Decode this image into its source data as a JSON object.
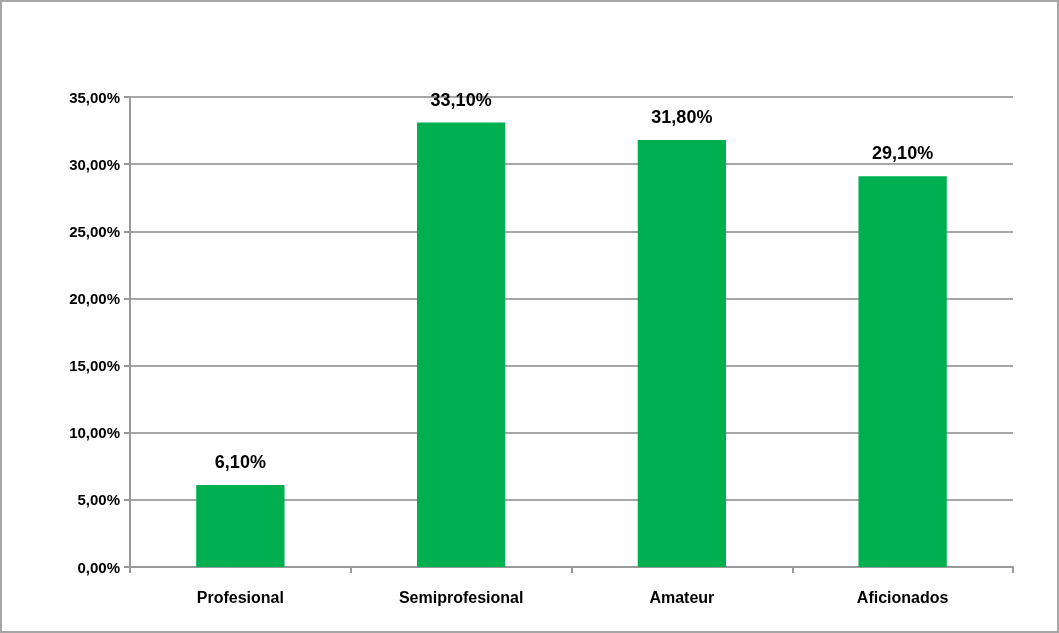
{
  "chart_data": {
    "type": "bar",
    "categories": [
      "Profesional",
      "Semiprofesional",
      "Amateur",
      "Aficionados"
    ],
    "values": [
      6.1,
      33.1,
      31.8,
      29.1
    ],
    "color": "#00b050",
    "value_labels": [
      "6,10%",
      "33,10%",
      "31,80%",
      "29,10%"
    ],
    "ylim": [
      0,
      35
    ],
    "yticks": [
      {
        "value": 0,
        "label": "0,00%"
      },
      {
        "value": 5,
        "label": "5,00%"
      },
      {
        "value": 10,
        "label": "10,00%"
      },
      {
        "value": 15,
        "label": "15,00%"
      },
      {
        "value": 20,
        "label": "20,00%"
      },
      {
        "value": 25,
        "label": "25,00%"
      },
      {
        "value": 30,
        "label": "30,00%"
      },
      {
        "value": 35,
        "label": "35,00%"
      }
    ],
    "grid": "y"
  }
}
